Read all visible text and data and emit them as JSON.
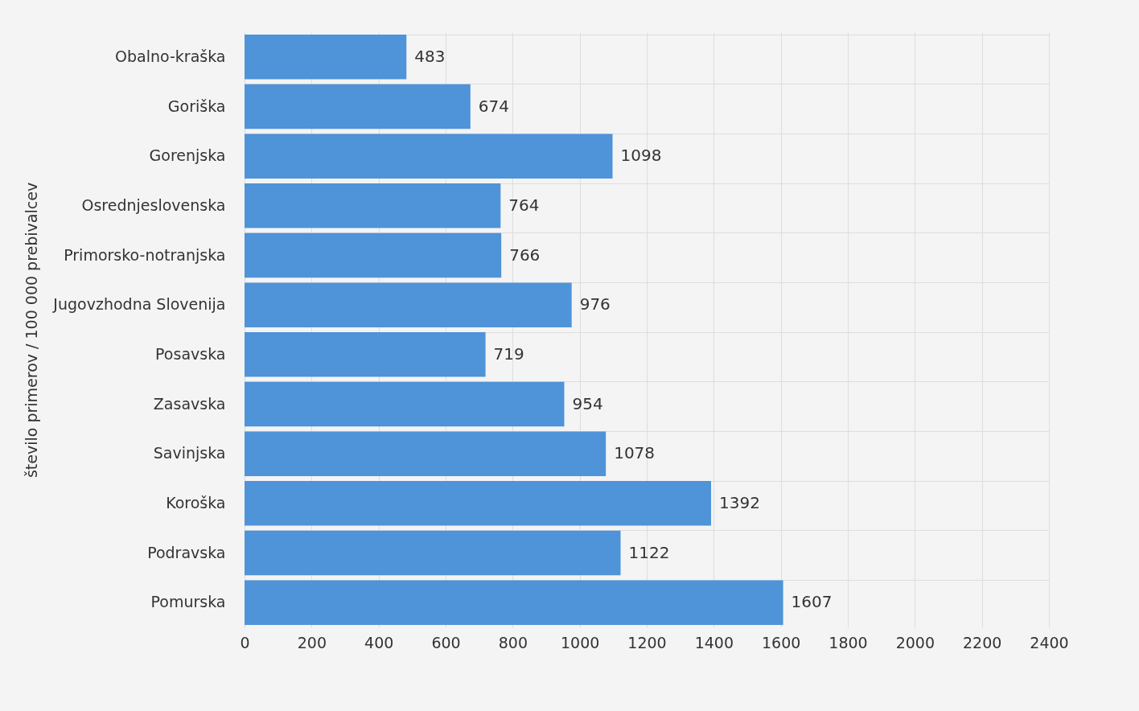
{
  "chart_data": {
    "type": "bar",
    "orientation": "horizontal",
    "ylabel": "število primerov / 100 000 prebivalcev",
    "categories": [
      "Obalno-kraška",
      "Goriška",
      "Gorenjska",
      "Osrednjeslovenska",
      "Primorsko-notranjska",
      "Jugovzhodna Slovenija",
      "Posavska",
      "Zasavska",
      "Savinjska",
      "Koroška",
      "Podravska",
      "Pomurska"
    ],
    "values": [
      483,
      674,
      1098,
      764,
      766,
      976,
      719,
      954,
      1078,
      1392,
      1122,
      1607
    ],
    "color": "#4f93d8",
    "xlim": [
      0,
      2400
    ],
    "xticks": [
      0,
      200,
      400,
      600,
      800,
      1000,
      1200,
      1400,
      1600,
      1800,
      2000,
      2200,
      2400
    ],
    "grid": true,
    "data_labels": true
  }
}
